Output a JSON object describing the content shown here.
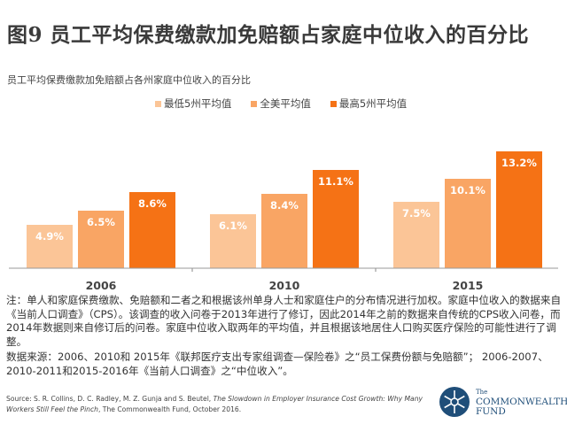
{
  "header": {
    "title": "图9  员工平均保费缴款加免赔额占家庭中位收入的百分比"
  },
  "chart_data": {
    "type": "bar",
    "title": "员工平均保费缴款加免赔额占各州家庭中位收入的百分比",
    "categories": [
      "2006",
      "2010",
      "2015"
    ],
    "series": [
      {
        "name": "最低5州平均值",
        "values": [
          4.9,
          6.1,
          7.5
        ],
        "labels": [
          "4.9%",
          "6.1%",
          "7.5%"
        ],
        "color": "#fbc597"
      },
      {
        "name": "全美平均值",
        "values": [
          6.5,
          8.4,
          10.1
        ],
        "labels": [
          "6.5%",
          "8.4%",
          "10.1%"
        ],
        "color": "#f9a564"
      },
      {
        "name": "最高5州平均值",
        "values": [
          8.6,
          11.1,
          13.2
        ],
        "labels": [
          "8.6%",
          "11.1%",
          "13.2%"
        ],
        "color": "#f57215"
      }
    ],
    "legend_position": "top",
    "grid": false,
    "ylim": [
      0,
      14
    ]
  },
  "notes": {
    "note": "注：单人和家庭保费缴款、免赔额和二者之和根据该州单身人士和家庭住户的分布情况进行加权。家庭中位收入的数据来自《当前人口调查》（CPS）。该调查的收入问卷于2013年进行了修订，因此2014年之前的数据来自传统的CPS收入问卷，而2014年数据则来自修订后的问卷。家庭中位收入取两年的平均值，并且根据该地居住人口购买医疗保险的可能性进行了调整。",
    "data_source": "数据来源：2006、2010和 2015年《联邦医疗支出专家组调查—保险卷》之“员工保费份额与免赔额”； 2006-2007、2010-2011和2015-2016年《当前人口调查》之“中位收入”。"
  },
  "source": {
    "prefix": "Source: S. R. Collins, D. C. Radley, M. Z. Gunja and S. Beutel, ",
    "title": "The Slowdown in Employer Insurance Cost Growth: Why Many Workers Still Feel the Pinch",
    "suffix": ", The Commonwealth Fund, October 2016."
  },
  "logo": {
    "the": "The",
    "line1": "COMMONWEALTH",
    "line2": "FUND",
    "color": "#1f4e79"
  }
}
